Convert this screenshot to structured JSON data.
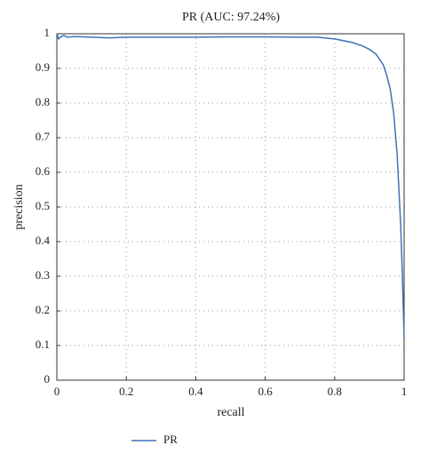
{
  "chart_data": {
    "type": "line",
    "title": "PR (AUC: 97.24%)",
    "xlabel": "recall",
    "ylabel": "precision",
    "x": [
      0,
      0.005,
      0.01,
      0.02,
      0.03,
      0.05,
      0.1,
      0.15,
      0.2,
      0.3,
      0.4,
      0.5,
      0.6,
      0.7,
      0.75,
      0.8,
      0.85,
      0.88,
      0.9,
      0.92,
      0.94,
      0.95,
      0.96,
      0.97,
      0.98,
      0.99,
      0.995,
      1.0
    ],
    "series": [
      {
        "name": "PR",
        "color": "#3d72b8",
        "values": [
          1.0,
          0.985,
          0.99,
          0.995,
          0.99,
          0.992,
          0.99,
          0.988,
          0.99,
          0.99,
          0.99,
          0.991,
          0.991,
          0.99,
          0.99,
          0.985,
          0.975,
          0.965,
          0.955,
          0.94,
          0.91,
          0.88,
          0.84,
          0.77,
          0.65,
          0.45,
          0.3,
          0.12
        ]
      }
    ],
    "xlim": [
      0,
      1
    ],
    "ylim": [
      0,
      1
    ],
    "xticks": [
      0,
      0.2,
      0.4,
      0.6,
      0.8,
      1
    ],
    "yticks": [
      0,
      0.1,
      0.2,
      0.3,
      0.4,
      0.5,
      0.6,
      0.7,
      0.8,
      0.9,
      1
    ],
    "grid": true,
    "legend": "bottom"
  }
}
